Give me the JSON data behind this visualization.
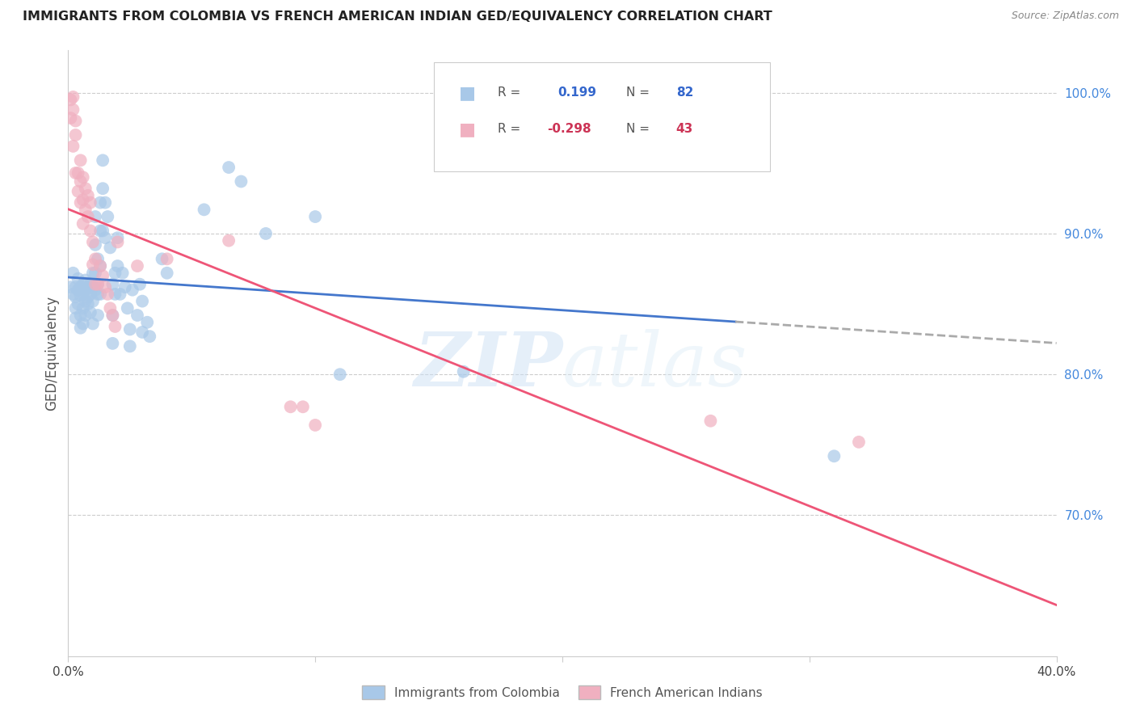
{
  "title": "IMMIGRANTS FROM COLOMBIA VS FRENCH AMERICAN INDIAN GED/EQUIVALENCY CORRELATION CHART",
  "source": "Source: ZipAtlas.com",
  "ylabel": "GED/Equivalency",
  "xlim": [
    0.0,
    0.4
  ],
  "ylim": [
    0.6,
    1.03
  ],
  "yticks": [
    0.7,
    0.8,
    0.9,
    1.0
  ],
  "ytick_labels": [
    "70.0%",
    "80.0%",
    "90.0%",
    "100.0%"
  ],
  "xticks": [
    0.0,
    0.1,
    0.2,
    0.3,
    0.4
  ],
  "xtick_labels": [
    "0.0%",
    "",
    "",
    "",
    "40.0%"
  ],
  "r_colombia": 0.199,
  "n_colombia": 82,
  "r_french": -0.298,
  "n_french": 43,
  "legend1_label": "Immigrants from Colombia",
  "legend2_label": "French American Indians",
  "colombia_color": "#a8c8e8",
  "french_color": "#f0b0c0",
  "colombia_line_color": "#4477cc",
  "french_line_color": "#ee5577",
  "watermark": "ZIPAtlas",
  "colombia_points": [
    [
      0.001,
      0.862
    ],
    [
      0.002,
      0.857
    ],
    [
      0.002,
      0.872
    ],
    [
      0.003,
      0.855
    ],
    [
      0.003,
      0.862
    ],
    [
      0.003,
      0.847
    ],
    [
      0.003,
      0.84
    ],
    [
      0.004,
      0.86
    ],
    [
      0.004,
      0.868
    ],
    [
      0.004,
      0.85
    ],
    [
      0.005,
      0.862
    ],
    [
      0.005,
      0.856
    ],
    [
      0.005,
      0.842
    ],
    [
      0.005,
      0.833
    ],
    [
      0.006,
      0.864
    ],
    [
      0.006,
      0.858
    ],
    [
      0.006,
      0.847
    ],
    [
      0.006,
      0.836
    ],
    [
      0.007,
      0.867
    ],
    [
      0.007,
      0.86
    ],
    [
      0.007,
      0.852
    ],
    [
      0.007,
      0.842
    ],
    [
      0.008,
      0.862
    ],
    [
      0.008,
      0.855
    ],
    [
      0.008,
      0.85
    ],
    [
      0.009,
      0.864
    ],
    [
      0.009,
      0.857
    ],
    [
      0.009,
      0.844
    ],
    [
      0.01,
      0.872
    ],
    [
      0.01,
      0.862
    ],
    [
      0.01,
      0.852
    ],
    [
      0.01,
      0.836
    ],
    [
      0.011,
      0.912
    ],
    [
      0.011,
      0.892
    ],
    [
      0.011,
      0.872
    ],
    [
      0.011,
      0.86
    ],
    [
      0.012,
      0.882
    ],
    [
      0.012,
      0.864
    ],
    [
      0.012,
      0.857
    ],
    [
      0.012,
      0.842
    ],
    [
      0.013,
      0.922
    ],
    [
      0.013,
      0.902
    ],
    [
      0.013,
      0.877
    ],
    [
      0.013,
      0.857
    ],
    [
      0.014,
      0.952
    ],
    [
      0.014,
      0.932
    ],
    [
      0.014,
      0.902
    ],
    [
      0.015,
      0.922
    ],
    [
      0.015,
      0.897
    ],
    [
      0.016,
      0.912
    ],
    [
      0.017,
      0.89
    ],
    [
      0.018,
      0.864
    ],
    [
      0.018,
      0.842
    ],
    [
      0.018,
      0.822
    ],
    [
      0.019,
      0.872
    ],
    [
      0.019,
      0.857
    ],
    [
      0.02,
      0.897
    ],
    [
      0.02,
      0.877
    ],
    [
      0.021,
      0.857
    ],
    [
      0.022,
      0.872
    ],
    [
      0.023,
      0.862
    ],
    [
      0.024,
      0.847
    ],
    [
      0.025,
      0.832
    ],
    [
      0.025,
      0.82
    ],
    [
      0.026,
      0.86
    ],
    [
      0.028,
      0.842
    ],
    [
      0.029,
      0.864
    ],
    [
      0.03,
      0.852
    ],
    [
      0.03,
      0.83
    ],
    [
      0.032,
      0.837
    ],
    [
      0.033,
      0.827
    ],
    [
      0.038,
      0.882
    ],
    [
      0.04,
      0.872
    ],
    [
      0.055,
      0.917
    ],
    [
      0.065,
      0.947
    ],
    [
      0.07,
      0.937
    ],
    [
      0.08,
      0.9
    ],
    [
      0.1,
      0.912
    ],
    [
      0.11,
      0.8
    ],
    [
      0.16,
      0.802
    ],
    [
      0.18,
      0.972
    ],
    [
      0.31,
      0.742
    ]
  ],
  "french_points": [
    [
      0.001,
      0.995
    ],
    [
      0.001,
      0.982
    ],
    [
      0.002,
      0.997
    ],
    [
      0.002,
      0.988
    ],
    [
      0.002,
      0.962
    ],
    [
      0.003,
      0.98
    ],
    [
      0.003,
      0.97
    ],
    [
      0.003,
      0.943
    ],
    [
      0.004,
      0.943
    ],
    [
      0.004,
      0.93
    ],
    [
      0.005,
      0.952
    ],
    [
      0.005,
      0.937
    ],
    [
      0.005,
      0.922
    ],
    [
      0.006,
      0.94
    ],
    [
      0.006,
      0.924
    ],
    [
      0.006,
      0.907
    ],
    [
      0.007,
      0.932
    ],
    [
      0.007,
      0.917
    ],
    [
      0.008,
      0.927
    ],
    [
      0.008,
      0.912
    ],
    [
      0.009,
      0.922
    ],
    [
      0.009,
      0.902
    ],
    [
      0.01,
      0.894
    ],
    [
      0.01,
      0.878
    ],
    [
      0.011,
      0.882
    ],
    [
      0.011,
      0.864
    ],
    [
      0.012,
      0.864
    ],
    [
      0.013,
      0.877
    ],
    [
      0.014,
      0.87
    ],
    [
      0.015,
      0.862
    ],
    [
      0.016,
      0.857
    ],
    [
      0.017,
      0.847
    ],
    [
      0.018,
      0.842
    ],
    [
      0.019,
      0.834
    ],
    [
      0.02,
      0.894
    ],
    [
      0.028,
      0.877
    ],
    [
      0.04,
      0.882
    ],
    [
      0.065,
      0.895
    ],
    [
      0.09,
      0.777
    ],
    [
      0.095,
      0.777
    ],
    [
      0.1,
      0.764
    ],
    [
      0.26,
      0.767
    ],
    [
      0.32,
      0.752
    ]
  ]
}
